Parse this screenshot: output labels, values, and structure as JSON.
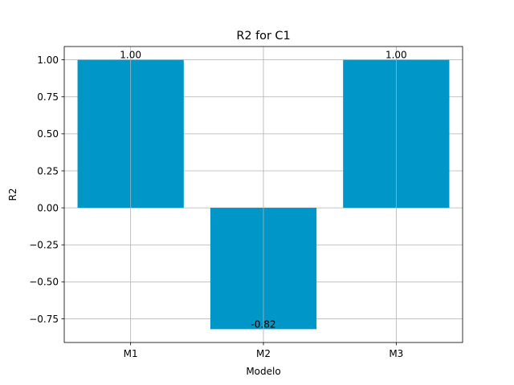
{
  "chart_data": {
    "type": "bar",
    "title": "R2 for C1",
    "xlabel": "Modelo",
    "ylabel": "R2",
    "categories": [
      "M1",
      "M2",
      "M3"
    ],
    "values": [
      1.0,
      -0.82,
      1.0
    ],
    "value_labels": [
      "1.00",
      "-0.82",
      "1.00"
    ],
    "ylim": [
      -0.91,
      1.09
    ],
    "yticks": [
      -0.75,
      -0.5,
      -0.25,
      0.0,
      0.25,
      0.5,
      0.75,
      1.0
    ],
    "ytick_labels": [
      "−0.75",
      "−0.50",
      "−0.25",
      "0.00",
      "0.25",
      "0.50",
      "0.75",
      "1.00"
    ],
    "grid": true,
    "bar_color": "#0096c8"
  }
}
